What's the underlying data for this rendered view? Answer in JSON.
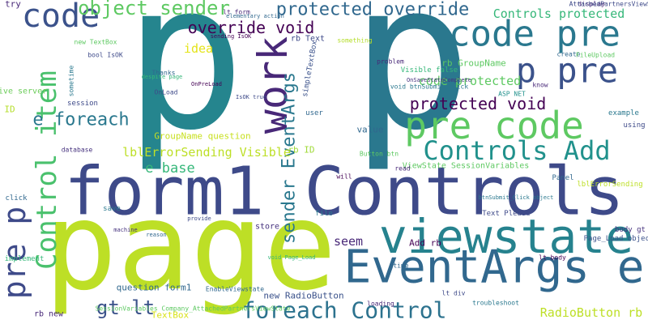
{
  "words": [
    {
      "text": "p",
      "color": "#25858e"
    },
    {
      "text": "p",
      "color": "#2a788e"
    },
    {
      "text": "page",
      "color": "#bddf26"
    },
    {
      "text": "form1 Controls",
      "color": "#3e4a89"
    },
    {
      "text": "EventArgs e",
      "color": "#31688e"
    },
    {
      "text": "viewstate",
      "color": "#26828e"
    },
    {
      "text": "code pre",
      "color": "#2a788e"
    },
    {
      "text": "p pre",
      "color": "#3b528b"
    },
    {
      "text": "pre code",
      "color": "#5ec962"
    },
    {
      "text": "Controls Add",
      "color": "#21918c"
    },
    {
      "text": "work",
      "color": "#482878"
    },
    {
      "text": "code",
      "color": "#3b528b"
    },
    {
      "text": "object sender",
      "color": "#5ec962"
    },
    {
      "text": "protected override",
      "color": "#31688e"
    },
    {
      "text": "override void",
      "color": "#440154"
    },
    {
      "text": "Controls protected",
      "color": "#35b779"
    },
    {
      "text": "Control item",
      "color": "#4ac16d"
    },
    {
      "text": "e foreach",
      "color": "#2a788e"
    },
    {
      "text": "pre p",
      "color": "#3e4a89"
    },
    {
      "text": "foreach Control",
      "color": "#2c728e"
    },
    {
      "text": "protected void",
      "color": "#440154"
    },
    {
      "text": "code protected",
      "color": "#5ec962"
    },
    {
      "text": "sender EventArgs",
      "color": "#2a788e"
    },
    {
      "text": "gt lt",
      "color": "#3b528b"
    },
    {
      "text": "lblErrorSending Visible",
      "color": "#bddf26"
    },
    {
      "text": "e base",
      "color": "#35b779"
    },
    {
      "text": "rb ID",
      "color": "#a0da39"
    },
    {
      "text": "GroupName question",
      "color": "#c8e020"
    },
    {
      "text": "RadioButton rb",
      "color": "#bddf26"
    },
    {
      "text": "idea",
      "color": "#e4e419"
    },
    {
      "text": "seem",
      "color": "#482878"
    },
    {
      "text": "question form1",
      "color": "#31688e"
    },
    {
      "text": "TextBox",
      "color": "#d8e219"
    },
    {
      "text": "new RadioButton",
      "color": "#3b528b"
    },
    {
      "text": "rb GroupName",
      "color": "#5ec962"
    },
    {
      "text": "store",
      "color": "#46327e"
    },
    {
      "text": "Add rb",
      "color": "#440154"
    },
    {
      "text": "value",
      "color": "#31688e"
    },
    {
      "text": "ViewState SessionVariables",
      "color": "#5ec962"
    },
    {
      "text": "simpleTextBox",
      "color": "#3b528b"
    },
    {
      "text": "try",
      "color": "#482878"
    },
    {
      "text": "ID",
      "color": "#b5de2b"
    },
    {
      "text": "live server",
      "color": "#6ccd5a"
    },
    {
      "text": "session",
      "color": "#3e4a89"
    },
    {
      "text": "database",
      "color": "#46327e"
    },
    {
      "text": "click",
      "color": "#31688e"
    },
    {
      "text": "save",
      "color": "#2a788e"
    },
    {
      "text": "implement",
      "color": "#35b779"
    },
    {
      "text": "rb new",
      "color": "#482878"
    },
    {
      "text": "OnLoad",
      "color": "#3e4a89"
    },
    {
      "text": "OnPreLoad",
      "color": "#440154"
    },
    {
      "text": "Thanks",
      "color": "#31688e"
    },
    {
      "text": "despite page",
      "color": "#35b779"
    },
    {
      "text": "bool IsOK",
      "color": "#3e4a89"
    },
    {
      "text": "new TextBox",
      "color": "#5ec962"
    },
    {
      "text": "sometime",
      "color": "#2a788e"
    },
    {
      "text": "sending IsOK",
      "color": "#440154"
    },
    {
      "text": "lt form",
      "color": "#482878"
    },
    {
      "text": "rb Text",
      "color": "#3e4a89"
    },
    {
      "text": "something",
      "color": "#b5de2b"
    },
    {
      "text": "problem",
      "color": "#482878"
    },
    {
      "text": "create",
      "color": "#31688e"
    },
    {
      "text": "FileUpload",
      "color": "#5ec962"
    },
    {
      "text": "Visible false",
      "color": "#35b779"
    },
    {
      "text": "void btnSubmit_Click",
      "color": "#2a788e"
    },
    {
      "text": "OnSaveStateComplete",
      "color": "#46327e"
    },
    {
      "text": "ASP NET",
      "color": "#21918c"
    },
    {
      "text": "know",
      "color": "#482878"
    },
    {
      "text": "using",
      "color": "#3e4a89"
    },
    {
      "text": "example",
      "color": "#2a788e"
    },
    {
      "text": "lblErrorSending",
      "color": "#bddf26"
    },
    {
      "text": "Panel",
      "color": "#31688e"
    },
    {
      "text": "btnSubmit_Click object",
      "color": "#2a788e"
    },
    {
      "text": "Text Please",
      "color": "#3e4a89"
    },
    {
      "text": "body gt",
      "color": "#46327e"
    },
    {
      "text": "Page_Load object",
      "color": "#3b528b"
    },
    {
      "text": "lt body",
      "color": "#440154"
    },
    {
      "text": "time",
      "color": "#31688e"
    },
    {
      "text": "file",
      "color": "#2a788e"
    },
    {
      "text": "will",
      "color": "#440154"
    },
    {
      "text": "Button btn",
      "color": "#5ec962"
    },
    {
      "text": "read",
      "color": "#482878"
    },
    {
      "text": "provide",
      "color": "#3e4a89"
    },
    {
      "text": "reason",
      "color": "#31688e"
    },
    {
      "text": "machine",
      "color": "#46327e"
    },
    {
      "text": "EnableViewstate",
      "color": "#31688e"
    },
    {
      "text": "SessionVariables Company_AttachedPartnersViewState",
      "color": "#5ec962"
    },
    {
      "text": "lt div",
      "color": "#3e4a89"
    },
    {
      "text": "loading",
      "color": "#482878"
    },
    {
      "text": "troubleshoot",
      "color": "#2a788e"
    },
    {
      "text": "void Page_Load",
      "color": "#35b779"
    },
    {
      "text": "IsOK true",
      "color": "#3e4a89"
    },
    {
      "text": "user",
      "color": "#31688e"
    },
    {
      "text": "display",
      "color": "#482878"
    },
    {
      "text": "AttachedPartnersViewState vs",
      "color": "#3e4a89"
    },
    {
      "text": "elementary action",
      "color": "#31688e"
    }
  ]
}
